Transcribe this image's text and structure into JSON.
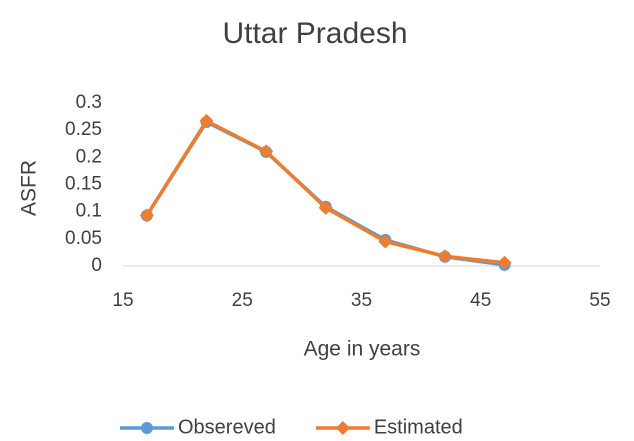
{
  "chart_data": {
    "type": "line",
    "title": "Uttar Pradesh",
    "x_label": "Age in years",
    "y_label": "ASFR",
    "x": [
      17,
      22,
      27,
      32,
      37,
      42,
      47
    ],
    "series": [
      {
        "name": "Obsereved",
        "color": "#5b9bd5",
        "marker": "circle",
        "values": [
          0.093,
          0.265,
          0.21,
          0.109,
          0.048,
          0.017,
          0.002
        ]
      },
      {
        "name": "Estimated",
        "color": "#ed7d31",
        "marker": "diamond",
        "values": [
          0.093,
          0.267,
          0.211,
          0.107,
          0.045,
          0.018,
          0.006
        ]
      }
    ],
    "xlim": [
      15,
      55
    ],
    "xticks": [
      15,
      25,
      35,
      45,
      55
    ],
    "ylim": [
      0,
      0.3
    ],
    "yticks": [
      0,
      0.05,
      0.1,
      0.15,
      0.2,
      0.25,
      0.3
    ],
    "grid": false,
    "legend": "bottom"
  }
}
